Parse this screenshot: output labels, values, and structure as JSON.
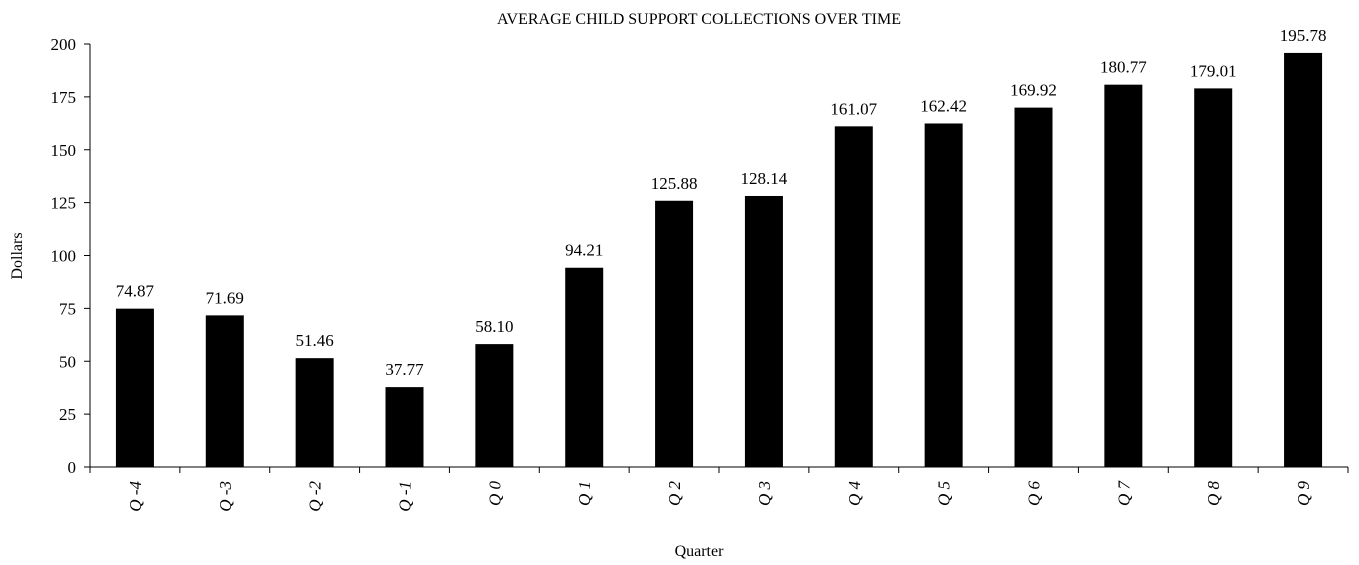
{
  "chart_data": {
    "type": "bar",
    "title": "AVERAGE CHILD SUPPORT COLLECTIONS OVER TIME",
    "xlabel": "Quarter",
    "ylabel": "Dollars",
    "ylim": [
      0,
      200
    ],
    "yticks": [
      "0",
      "25",
      "50",
      "75",
      "100",
      "125",
      "150",
      "175",
      "200"
    ],
    "categories": [
      "Q -4",
      "Q -3",
      "Q -2",
      "Q -1",
      "Q 0",
      "Q 1",
      "Q 2",
      "Q 3",
      "Q 4",
      "Q 5",
      "Q 6",
      "Q 7",
      "Q 8",
      "Q 9"
    ],
    "values": [
      74.87,
      71.69,
      51.46,
      37.77,
      58.1,
      94.21,
      125.88,
      128.14,
      161.07,
      162.42,
      169.92,
      180.77,
      179.01,
      195.78
    ],
    "value_labels": [
      "74.87",
      "71.69",
      "51.46",
      "37.77",
      "58.10",
      "94.21",
      "125.88",
      "128.14",
      "161.07",
      "162.42",
      "169.92",
      "180.77",
      "179.01",
      "195.78"
    ],
    "bar_color": "#000000",
    "grid": false,
    "legend": "none"
  }
}
